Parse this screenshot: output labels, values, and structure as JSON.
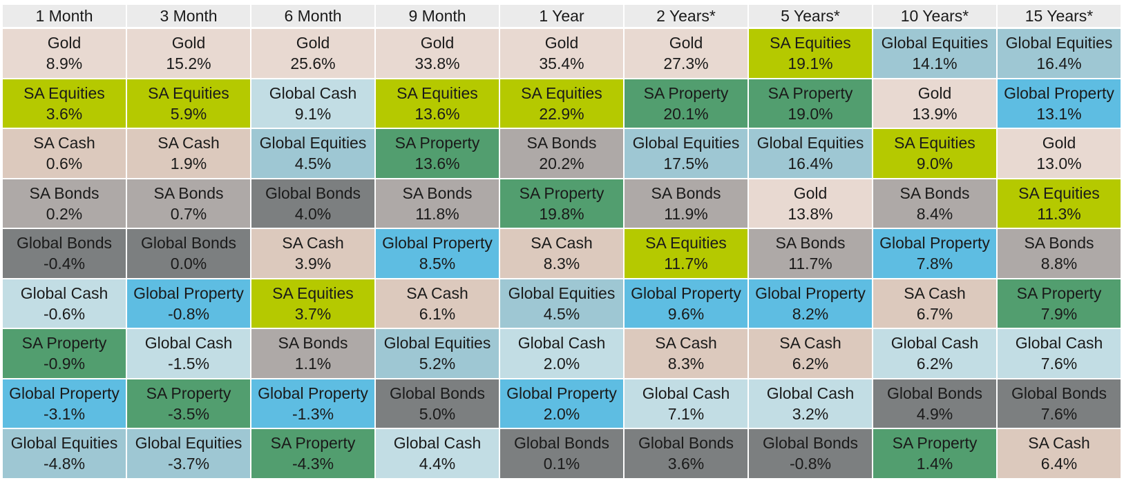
{
  "colors": {
    "Gold": "#e8d9d1",
    "SA Equities": "#b5c900",
    "SA Cash": "#dcc9bd",
    "SA Bonds": "#aea9a7",
    "Global Bonds": "#7c7f80",
    "Global Cash": "#c2dde4",
    "SA Property": "#529e6f",
    "Global Property": "#5ebde2",
    "Global Equities": "#9ec7d3"
  },
  "chart_data": {
    "type": "table",
    "columns": [
      "1 Month",
      "3 Month",
      "6 Month",
      "9 Month",
      "1 Year",
      "2 Years*",
      "5 Years*",
      "10 Years*",
      "15 Years*"
    ],
    "cells": [
      [
        {
          "asset": "Gold",
          "value": "8.9%"
        },
        {
          "asset": "SA Equities",
          "value": "3.6%"
        },
        {
          "asset": "SA Cash",
          "value": "0.6%"
        },
        {
          "asset": "SA Bonds",
          "value": "0.2%"
        },
        {
          "asset": "Global Bonds",
          "value": "-0.4%"
        },
        {
          "asset": "Global Cash",
          "value": "-0.6%"
        },
        {
          "asset": "SA Property",
          "value": "-0.9%"
        },
        {
          "asset": "Global Property",
          "value": "-3.1%"
        },
        {
          "asset": "Global Equities",
          "value": "-4.8%"
        }
      ],
      [
        {
          "asset": "Gold",
          "value": "15.2%"
        },
        {
          "asset": "SA Equities",
          "value": "5.9%"
        },
        {
          "asset": "SA Cash",
          "value": "1.9%"
        },
        {
          "asset": "SA Bonds",
          "value": "0.7%"
        },
        {
          "asset": "Global Bonds",
          "value": "0.0%"
        },
        {
          "asset": "Global Property",
          "value": "-0.8%"
        },
        {
          "asset": "Global Cash",
          "value": "-1.5%"
        },
        {
          "asset": "SA Property",
          "value": "-3.5%"
        },
        {
          "asset": "Global Equities",
          "value": "-3.7%"
        }
      ],
      [
        {
          "asset": "Gold",
          "value": "25.6%"
        },
        {
          "asset": "Global Cash",
          "value": "9.1%"
        },
        {
          "asset": "Global Equities",
          "value": "4.5%"
        },
        {
          "asset": "Global Bonds",
          "value": "4.0%"
        },
        {
          "asset": "SA Cash",
          "value": "3.9%"
        },
        {
          "asset": "SA Equities",
          "value": "3.7%"
        },
        {
          "asset": "SA Bonds",
          "value": "1.1%"
        },
        {
          "asset": "Global Property",
          "value": "-1.3%"
        },
        {
          "asset": "SA Property",
          "value": "-4.3%"
        }
      ],
      [
        {
          "asset": "Gold",
          "value": "33.8%"
        },
        {
          "asset": "SA Equities",
          "value": "13.6%"
        },
        {
          "asset": "SA Property",
          "value": "13.6%"
        },
        {
          "asset": "SA Bonds",
          "value": "11.8%"
        },
        {
          "asset": "Global Property",
          "value": "8.5%"
        },
        {
          "asset": "SA Cash",
          "value": "6.1%"
        },
        {
          "asset": "Global Equities",
          "value": "5.2%"
        },
        {
          "asset": "Global Bonds",
          "value": "5.0%"
        },
        {
          "asset": "Global Cash",
          "value": "4.4%"
        }
      ],
      [
        {
          "asset": "Gold",
          "value": "35.4%"
        },
        {
          "asset": "SA Equities",
          "value": "22.9%"
        },
        {
          "asset": "SA Bonds",
          "value": "20.2%"
        },
        {
          "asset": "SA Property",
          "value": "19.8%"
        },
        {
          "asset": "SA Cash",
          "value": "8.3%"
        },
        {
          "asset": "Global Equities",
          "value": "4.5%"
        },
        {
          "asset": "Global Cash",
          "value": "2.0%"
        },
        {
          "asset": "Global Property",
          "value": "2.0%"
        },
        {
          "asset": "Global Bonds",
          "value": "0.1%"
        }
      ],
      [
        {
          "asset": "Gold",
          "value": "27.3%"
        },
        {
          "asset": "SA Property",
          "value": "20.1%"
        },
        {
          "asset": "Global Equities",
          "value": "17.5%"
        },
        {
          "asset": "SA Bonds",
          "value": "11.9%"
        },
        {
          "asset": "SA Equities",
          "value": "11.7%"
        },
        {
          "asset": "Global Property",
          "value": "9.6%"
        },
        {
          "asset": "SA Cash",
          "value": "8.3%"
        },
        {
          "asset": "Global Cash",
          "value": "7.1%"
        },
        {
          "asset": "Global Bonds",
          "value": "3.6%"
        }
      ],
      [
        {
          "asset": "SA Equities",
          "value": "19.1%"
        },
        {
          "asset": "SA Property",
          "value": "19.0%"
        },
        {
          "asset": "Global Equities",
          "value": "16.4%"
        },
        {
          "asset": "Gold",
          "value": "13.8%"
        },
        {
          "asset": "SA Bonds",
          "value": "11.7%"
        },
        {
          "asset": "Global Property",
          "value": "8.2%"
        },
        {
          "asset": "SA Cash",
          "value": "6.2%"
        },
        {
          "asset": "Global Cash",
          "value": "3.2%"
        },
        {
          "asset": "Global Bonds",
          "value": "-0.8%"
        }
      ],
      [
        {
          "asset": "Global Equities",
          "value": "14.1%"
        },
        {
          "asset": "Gold",
          "value": "13.9%"
        },
        {
          "asset": "SA Equities",
          "value": "9.0%"
        },
        {
          "asset": "SA Bonds",
          "value": "8.4%"
        },
        {
          "asset": "Global Property",
          "value": "7.8%"
        },
        {
          "asset": "SA Cash",
          "value": "6.7%"
        },
        {
          "asset": "Global Cash",
          "value": "6.2%"
        },
        {
          "asset": "Global Bonds",
          "value": "4.9%"
        },
        {
          "asset": "SA Property",
          "value": "1.4%"
        }
      ],
      [
        {
          "asset": "Global Equities",
          "value": "16.4%"
        },
        {
          "asset": "Global Property",
          "value": "13.1%"
        },
        {
          "asset": "Gold",
          "value": "13.0%"
        },
        {
          "asset": "SA Equities",
          "value": "11.3%"
        },
        {
          "asset": "SA Bonds",
          "value": "8.8%"
        },
        {
          "asset": "SA Property",
          "value": "7.9%"
        },
        {
          "asset": "Global Cash",
          "value": "7.6%"
        },
        {
          "asset": "Global Bonds",
          "value": "7.6%"
        },
        {
          "asset": "SA Cash",
          "value": "6.4%"
        }
      ]
    ]
  }
}
